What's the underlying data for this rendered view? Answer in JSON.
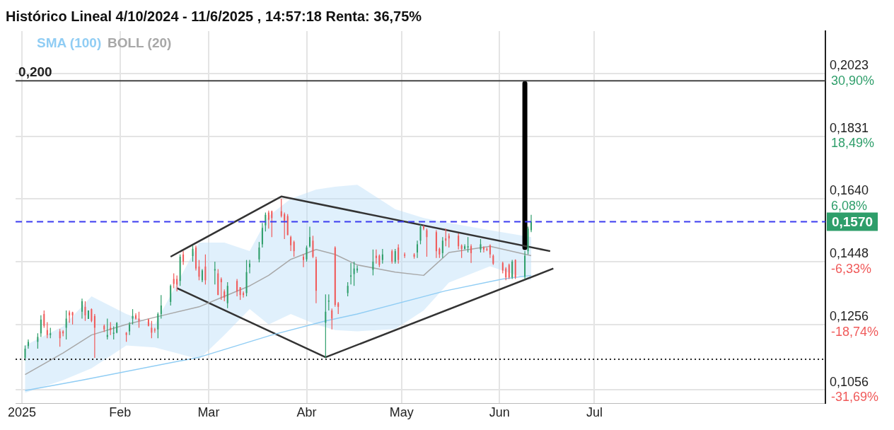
{
  "chart_data": {
    "type": "candlestick",
    "title": "Histórico Lineal 4/10/2024 - 11/6/2025 , 14:57:18 Renta: 36,75%",
    "x": [
      "2025-01-02",
      "2025-01-03",
      "2025-01-06",
      "2025-01-07",
      "2025-01-08",
      "2025-01-09",
      "2025-01-10",
      "2025-01-13",
      "2025-01-14",
      "2025-01-15",
      "2025-01-16",
      "2025-01-17",
      "2025-01-20",
      "2025-01-21",
      "2025-01-22",
      "2025-01-23",
      "2025-01-24",
      "2025-01-27",
      "2025-01-28",
      "2025-01-29",
      "2025-01-30",
      "2025-01-31",
      "2025-02-03",
      "2025-02-04",
      "2025-02-05",
      "2025-02-06",
      "2025-02-07",
      "2025-02-10",
      "2025-02-11",
      "2025-02-12",
      "2025-02-13",
      "2025-02-14",
      "2025-02-17",
      "2025-02-18",
      "2025-02-19",
      "2025-02-20",
      "2025-02-21",
      "2025-02-24",
      "2025-02-25",
      "2025-02-26",
      "2025-02-27",
      "2025-02-28",
      "2025-03-03",
      "2025-03-04",
      "2025-03-05",
      "2025-03-06",
      "2025-03-07",
      "2025-03-10",
      "2025-03-11",
      "2025-03-12",
      "2025-03-13",
      "2025-03-14",
      "2025-03-17",
      "2025-03-18",
      "2025-03-19",
      "2025-03-20",
      "2025-03-21",
      "2025-03-24",
      "2025-03-25",
      "2025-03-26",
      "2025-03-27",
      "2025-03-28",
      "2025-03-31",
      "2025-04-01",
      "2025-04-02",
      "2025-04-03",
      "2025-04-04",
      "2025-04-07",
      "2025-04-08",
      "2025-04-09",
      "2025-04-10",
      "2025-04-11",
      "2025-04-14",
      "2025-04-15",
      "2025-04-16",
      "2025-04-17",
      "2025-04-22",
      "2025-04-23",
      "2025-04-24",
      "2025-04-25",
      "2025-04-28",
      "2025-04-29",
      "2025-04-30",
      "2025-05-02",
      "2025-05-05",
      "2025-05-06",
      "2025-05-07",
      "2025-05-08",
      "2025-05-09",
      "2025-05-12",
      "2025-05-13",
      "2025-05-14",
      "2025-05-15",
      "2025-05-16",
      "2025-05-19",
      "2025-05-20",
      "2025-05-21",
      "2025-05-22",
      "2025-05-23",
      "2025-05-26",
      "2025-05-27",
      "2025-05-28",
      "2025-05-29",
      "2025-05-30",
      "2025-06-02",
      "2025-06-03",
      "2025-06-04",
      "2025-06-05",
      "2025-06-06",
      "2025-06-09",
      "2025-06-10",
      "2025-06-11"
    ],
    "ohlc": [
      [
        0.1154,
        0.1192,
        0.1146,
        0.1182
      ],
      [
        0.119,
        0.121,
        0.1182,
        0.1203
      ],
      [
        0.1203,
        0.1229,
        0.1182,
        0.1218
      ],
      [
        0.1229,
        0.1284,
        0.1218,
        0.1271
      ],
      [
        0.1288,
        0.1299,
        0.1246,
        0.1252
      ],
      [
        0.1239,
        0.1263,
        0.1214,
        0.1224
      ],
      [
        0.1224,
        0.1246,
        0.1214,
        0.1229
      ],
      [
        0.1235,
        0.1242,
        0.1188,
        0.1214
      ],
      [
        0.1235,
        0.1239,
        0.122,
        0.1229
      ],
      [
        0.1246,
        0.1299,
        0.121,
        0.1274
      ],
      [
        0.1293,
        0.1299,
        0.1261,
        0.1284
      ],
      [
        0.1293,
        0.1295,
        0.1256,
        0.1284
      ],
      [
        0.1295,
        0.1335,
        0.1274,
        0.1327
      ],
      [
        0.131,
        0.1327,
        0.1267,
        0.1284
      ],
      [
        0.1273,
        0.1299,
        0.1273,
        0.1299
      ],
      [
        0.1303,
        0.1305,
        0.1263,
        0.1267
      ],
      [
        0.1282,
        0.1288,
        0.1154,
        0.1246
      ],
      [
        0.1252,
        0.1256,
        0.1233,
        0.1241
      ],
      [
        0.1218,
        0.1274,
        0.121,
        0.1224
      ],
      [
        0.1246,
        0.1263,
        0.1224,
        0.1239
      ],
      [
        0.1229,
        0.125,
        0.121,
        0.1231
      ],
      [
        0.1231,
        0.1263,
        0.1229,
        0.1261
      ],
      [
        0.1231,
        0.1233,
        0.1203,
        0.1224
      ],
      [
        0.1235,
        0.1263,
        0.1224,
        0.1256
      ],
      [
        0.1274,
        0.1303,
        0.1256,
        0.1282
      ],
      [
        0.1284,
        0.129,
        0.1271,
        0.1274
      ],
      [
        0.1274,
        0.1295,
        0.1246,
        0.1267
      ],
      [
        0.1271,
        0.1274,
        0.125,
        0.1252
      ],
      [
        0.1246,
        0.1267,
        0.1214,
        0.1231
      ],
      [
        0.1241,
        0.1246,
        0.1231,
        0.1239
      ],
      [
        0.1241,
        0.1293,
        0.1214,
        0.1288
      ],
      [
        0.1288,
        0.1346,
        0.1274,
        0.1314
      ],
      [
        0.1325,
        0.1378,
        0.1314,
        0.1374
      ],
      [
        0.1395,
        0.1412,
        0.1367,
        0.138
      ],
      [
        0.1395,
        0.1406,
        0.1357,
        0.1378
      ],
      [
        0.1389,
        0.147,
        0.1374,
        0.1463
      ],
      [
        0.147,
        0.148,
        0.1438,
        0.1448
      ],
      [
        0.1465,
        0.1497,
        0.1448,
        0.1487
      ],
      [
        0.1491,
        0.1497,
        0.1421,
        0.1427
      ],
      [
        0.1433,
        0.1453,
        0.1391,
        0.1402
      ],
      [
        0.1391,
        0.1425,
        0.1385,
        0.1421
      ],
      [
        0.1433,
        0.147,
        0.1378,
        0.1391
      ],
      [
        0.1421,
        0.1448,
        0.1378,
        0.1425
      ],
      [
        0.1412,
        0.1425,
        0.1346,
        0.1346
      ],
      [
        0.1395,
        0.14,
        0.1331,
        0.1385
      ],
      [
        0.1357,
        0.1363,
        0.1327,
        0.1338
      ],
      [
        0.1321,
        0.1385,
        0.1306,
        0.1374
      ],
      [
        0.1389,
        0.1395,
        0.1342,
        0.1357
      ],
      [
        0.137,
        0.137,
        0.1331,
        0.1346
      ],
      [
        0.1352,
        0.1357,
        0.1338,
        0.1346
      ],
      [
        0.1352,
        0.1453,
        0.1342,
        0.1416
      ],
      [
        0.1431,
        0.1453,
        0.1412,
        0.1442
      ],
      [
        0.1455,
        0.1508,
        0.1446,
        0.1491
      ],
      [
        0.1501,
        0.1566,
        0.1491,
        0.1551
      ],
      [
        0.1559,
        0.1598,
        0.154,
        0.1591
      ],
      [
        0.1598,
        0.1604,
        0.1549,
        0.1576
      ],
      [
        0.1602,
        0.1604,
        0.1523,
        0.1581
      ],
      [
        0.1602,
        0.164,
        0.1583,
        0.1587
      ],
      [
        0.1593,
        0.1598,
        0.1517,
        0.1572
      ],
      [
        0.1587,
        0.1593,
        0.1529,
        0.1529
      ],
      [
        0.1523,
        0.1527,
        0.148,
        0.1498
      ],
      [
        0.1508,
        0.1512,
        0.1463,
        0.148
      ],
      [
        0.1463,
        0.147,
        0.1431,
        0.1453
      ],
      [
        0.1455,
        0.1497,
        0.1448,
        0.1491
      ],
      [
        0.1495,
        0.1555,
        0.1491,
        0.1523
      ],
      [
        0.1512,
        0.1527,
        0.1459,
        0.1463
      ],
      [
        0.1455,
        0.1463,
        0.1321,
        0.1359
      ],
      [
        0.1261,
        0.1348,
        0.1154,
        0.1295
      ],
      [
        0.1327,
        0.1348,
        0.1299,
        0.1329
      ],
      [
        0.1299,
        0.1305,
        0.1241,
        0.1274
      ],
      [
        0.1491,
        0.1495,
        0.131,
        0.1316
      ],
      [
        0.1321,
        0.1325,
        0.1288,
        0.131
      ],
      [
        0.1352,
        0.1385,
        0.1342,
        0.1374
      ],
      [
        0.1402,
        0.1444,
        0.1378,
        0.1406
      ],
      [
        0.141,
        0.1448,
        0.1374,
        0.1427
      ],
      [
        0.1421,
        0.1436,
        0.1414,
        0.1427
      ],
      [
        0.1423,
        0.1485,
        0.1406,
        0.1448
      ],
      [
        0.1466,
        0.1485,
        0.1442,
        0.1459
      ],
      [
        0.1466,
        0.147,
        0.1431,
        0.1438
      ],
      [
        0.1453,
        0.1487,
        0.1442,
        0.147
      ],
      [
        0.148,
        0.1485,
        0.1442,
        0.1448
      ],
      [
        0.1448,
        0.1487,
        0.1442,
        0.148
      ],
      [
        0.1491,
        0.1501,
        0.1442,
        0.1453
      ],
      [
        0.147,
        0.1476,
        0.1459,
        0.1466
      ],
      [
        0.147,
        0.1474,
        0.1457,
        0.1463
      ],
      [
        0.1476,
        0.1512,
        0.1459,
        0.1501
      ],
      [
        0.1512,
        0.1561,
        0.1501,
        0.1555
      ],
      [
        0.1555,
        0.1559,
        0.1544,
        0.1549
      ],
      [
        0.1544,
        0.1549,
        0.1463,
        0.1523
      ],
      [
        0.1538,
        0.1544,
        0.1459,
        0.148
      ],
      [
        0.1487,
        0.1491,
        0.1459,
        0.147
      ],
      [
        0.1474,
        0.1523,
        0.1459,
        0.1512
      ],
      [
        0.1519,
        0.1549,
        0.1495,
        0.1512
      ],
      [
        0.1527,
        0.1534,
        0.1491,
        0.1519
      ],
      [
        0.1527,
        0.1534,
        0.1485,
        0.1495
      ],
      [
        0.1497,
        0.1501,
        0.1459,
        0.1487
      ],
      [
        0.1487,
        0.1501,
        0.1485,
        0.1495
      ],
      [
        0.1491,
        0.1523,
        0.1476,
        0.1495
      ],
      [
        0.1495,
        0.1501,
        0.1444,
        0.1474
      ],
      [
        0.1485,
        0.1517,
        0.1476,
        0.1501
      ],
      [
        0.1491,
        0.1495,
        0.1476,
        0.1485
      ],
      [
        0.1487,
        0.1491,
        0.148,
        0.1485
      ],
      [
        0.1497,
        0.1501,
        0.1459,
        0.147
      ],
      [
        0.1466,
        0.147,
        0.1438,
        0.1442
      ],
      [
        0.1444,
        0.1448,
        0.1412,
        0.1421
      ],
      [
        0.1427,
        0.1431,
        0.1391,
        0.14
      ],
      [
        0.1438,
        0.1442,
        0.1395,
        0.14
      ],
      [
        0.14,
        0.1453,
        0.1395,
        0.1448
      ],
      [
        0.1453,
        0.1455,
        0.1395,
        0.14
      ],
      [
        0.1402,
        0.148,
        0.1395,
        0.1466
      ],
      [
        0.148,
        0.1555,
        0.147,
        0.1549
      ],
      [
        0.1544,
        0.1591,
        0.1538,
        0.157
      ]
    ],
    "colors": [
      "#2e9e6a",
      "#2e9e6a",
      "#2e9e6a",
      "#2e9e6a",
      "#f05a5a",
      "#f05a5a",
      "#2e9e6a",
      "#f05a5a",
      "#f05a5a",
      "#2e9e6a",
      "#f05a5a",
      "#f05a5a",
      "#2e9e6a",
      "#f05a5a",
      "#2e9e6a",
      "#f05a5a",
      "#f05a5a",
      "#f05a5a",
      "#2e9e6a",
      "#f05a5a",
      "#2e9e6a",
      "#2e9e6a",
      "#f05a5a",
      "#2e9e6a",
      "#2e9e6a",
      "#f05a5a",
      "#f05a5a",
      "#f05a5a",
      "#f05a5a",
      "#f05a5a",
      "#2e9e6a",
      "#2e9e6a",
      "#2e9e6a",
      "#f05a5a",
      "#f05a5a",
      "#2e9e6a",
      "#f05a5a",
      "#2e9e6a",
      "#f05a5a",
      "#f05a5a",
      "#2e9e6a",
      "#f05a5a",
      "#2e9e6a",
      "#f05a5a",
      "#f05a5a",
      "#f05a5a",
      "#2e9e6a",
      "#f05a5a",
      "#f05a5a",
      "#f05a5a",
      "#2e9e6a",
      "#2e9e6a",
      "#2e9e6a",
      "#2e9e6a",
      "#2e9e6a",
      "#f05a5a",
      "#f05a5a",
      "#f05a5a",
      "#f05a5a",
      "#f05a5a",
      "#f05a5a",
      "#f05a5a",
      "#f05a5a",
      "#2e9e6a",
      "#2e9e6a",
      "#f05a5a",
      "#f05a5a",
      "#2e9e6a",
      "#2e9e6a",
      "#f05a5a",
      "#f05a5a",
      "#f05a5a",
      "#2e9e6a",
      "#2e9e6a",
      "#2e9e6a",
      "#2e9e6a",
      "#2e9e6a",
      "#f05a5a",
      "#f05a5a",
      "#2e9e6a",
      "#f05a5a",
      "#2e9e6a",
      "#f05a5a",
      "#f05a5a",
      "#f05a5a",
      "#2e9e6a",
      "#2e9e6a",
      "#f05a5a",
      "#f05a5a",
      "#f05a5a",
      "#f05a5a",
      "#2e9e6a",
      "#f05a5a",
      "#f05a5a",
      "#f05a5a",
      "#f05a5a",
      "#2e9e6a",
      "#2e9e6a",
      "#f05a5a",
      "#2e9e6a",
      "#f05a5a",
      "#f05a5a",
      "#f05a5a",
      "#f05a5a",
      "#f05a5a",
      "#f05a5a",
      "#f05a5a",
      "#2e9e6a",
      "#f05a5a",
      "#2e9e6a",
      "#2e9e6a",
      "#2e9e6a"
    ],
    "series": [
      {
        "name": "SMA (100)",
        "type": "line",
        "color": "#90cdf4",
        "x": [
          "2025-01-02",
          "2025-01-20",
          "2025-02-26",
          "2025-03-21",
          "2025-04-07",
          "2025-04-17",
          "2025-05-15",
          "2025-06-02",
          "2025-06-11"
        ],
        "values": [
          0.1054,
          0.1086,
          0.1156,
          0.1224,
          0.1267,
          0.1288,
          0.1359,
          0.1395,
          0.1406
        ]
      },
      {
        "name": "BOLL (20)",
        "type": "line",
        "color": "#a8a8a8",
        "x": [
          "2025-01-02",
          "2025-01-14",
          "2025-01-23",
          "2025-02-03",
          "2025-02-12",
          "2025-02-26",
          "2025-03-06",
          "2025-03-14",
          "2025-03-20",
          "2025-03-27",
          "2025-04-04",
          "2025-04-10",
          "2025-04-17",
          "2025-04-29",
          "2025-05-08",
          "2025-05-16",
          "2025-05-29",
          "2025-06-11"
        ],
        "values": [
          0.1103,
          0.1169,
          0.1224,
          0.1256,
          0.1278,
          0.131,
          0.1342,
          0.1374,
          0.1406,
          0.1455,
          0.1485,
          0.147,
          0.1438,
          0.1416,
          0.1406,
          0.1476,
          0.1495,
          0.1466
        ],
        "lower": [
          0.1047,
          0.1086,
          0.1122,
          0.1192,
          0.1186,
          0.115,
          0.1224,
          0.1303,
          0.1256,
          0.1288,
          0.1256,
          0.1239,
          0.1235,
          0.1242,
          0.1299,
          0.1384,
          0.1434,
          0.1391
        ],
        "upper": [
          0.1192,
          0.125,
          0.1342,
          0.1288,
          0.1256,
          0.1506,
          0.1506,
          0.148,
          0.1587,
          0.164,
          0.1668,
          0.1677,
          0.1683,
          0.1608,
          0.1581,
          0.1566,
          0.1544,
          0.1523
        ]
      },
      {
        "type": "line",
        "color": "#333333",
        "x": [
          "2025-02-17",
          "2025-03-24",
          "2025-06-17"
        ],
        "values": [
          0.1463,
          0.1647,
          0.148
        ]
      },
      {
        "type": "line",
        "color": "#333333",
        "x": [
          "2025-02-19",
          "2025-04-07",
          "2025-06-18"
        ],
        "values": [
          0.1367,
          0.1156,
          0.1427
        ]
      },
      {
        "type": "line",
        "color": "#000000",
        "x": [
          "2025-06-09",
          "2025-06-09"
        ],
        "values": [
          0.1992,
          0.1491
        ]
      }
    ],
    "ref_lines": [
      {
        "axis": "y",
        "value": 0.2,
        "label": "0,200",
        "color": "#444444",
        "line_style": "solid"
      },
      {
        "axis": "y",
        "value": 0.157,
        "label": "0,1570",
        "color": "#3b3bf0",
        "line_style": "dashed"
      },
      {
        "axis": "y",
        "value": 0.115,
        "color": "#222222",
        "line_style": "dotted"
      }
    ],
    "xlim": [
      "2024-12-30",
      "2025-09-12"
    ],
    "xticks": [
      {
        "value": "2025-01-01",
        "label": "2025"
      },
      {
        "value": "2025-02-01",
        "label": "Feb"
      },
      {
        "value": "2025-03-01",
        "label": "Mar"
      },
      {
        "value": "2025-04-01",
        "label": "Abr"
      },
      {
        "value": "2025-05-01",
        "label": "May"
      },
      {
        "value": "2025-06-01",
        "label": "Jun"
      },
      {
        "value": "2025-07-01",
        "label": "Jul"
      }
    ],
    "ylim": [
      0.1015,
      0.2152
    ],
    "yticks": [
      {
        "value": 0.2023,
        "label": "0,2023"
      },
      {
        "value": 0.1831,
        "label": "0,1831"
      },
      {
        "value": 0.164,
        "label": "0,1640"
      },
      {
        "value": 0.1448,
        "label": "0,1448"
      },
      {
        "value": 0.1256,
        "label": "0,1256"
      },
      {
        "value": 0.1056,
        "label": "0,1056"
      }
    ],
    "y2lim": [
      -34.33,
      39.24
    ],
    "y2ticks": [
      {
        "value": 30.9,
        "label": "30,90%"
      },
      {
        "value": 18.49,
        "label": "18,49%"
      },
      {
        "value": 6.08,
        "label": "6,08%"
      },
      {
        "value": -6.33,
        "label": "-6,33%"
      },
      {
        "value": -18.74,
        "label": "-18,74%"
      },
      {
        "value": -31.69,
        "label": "-31,69%"
      }
    ],
    "grid": true,
    "legend": "top left"
  }
}
